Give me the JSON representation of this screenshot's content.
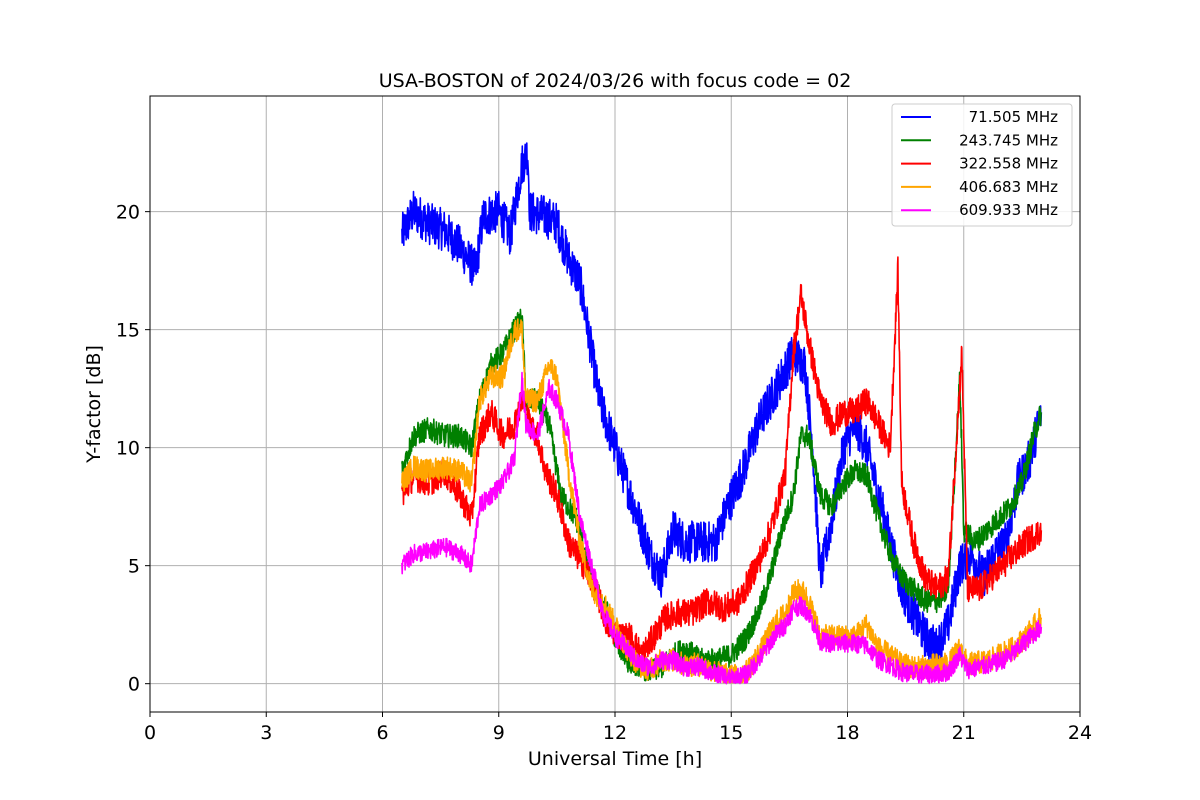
{
  "chart_data": {
    "type": "line",
    "title": "USA-BOSTON of 2024/03/26 with focus code = 02",
    "xlabel": "Universal Time [h]",
    "ylabel": "Y-factor [dB]",
    "xlim": [
      0,
      24
    ],
    "ylim": [
      -1.2,
      24.9
    ],
    "xticks": [
      "0",
      "3",
      "6",
      "9",
      "12",
      "15",
      "18",
      "21",
      "24"
    ],
    "yticks": [
      "0",
      "5",
      "10",
      "15",
      "20"
    ],
    "grid": true,
    "legend_position": "top-right",
    "series": [
      {
        "name": "71.505 MHz",
        "color": "#0000ff",
        "amp": 0.9,
        "points": [
          [
            6.5,
            19.0
          ],
          [
            6.8,
            20.0
          ],
          [
            7.2,
            19.5
          ],
          [
            7.6,
            19.2
          ],
          [
            8.0,
            18.5
          ],
          [
            8.4,
            17.5
          ],
          [
            8.6,
            19.8
          ],
          [
            9.0,
            20.0
          ],
          [
            9.3,
            19.0
          ],
          [
            9.6,
            22.0
          ],
          [
            9.75,
            22.5
          ],
          [
            9.8,
            20.0
          ],
          [
            10.2,
            19.8
          ],
          [
            10.5,
            19.5
          ],
          [
            10.8,
            18.0
          ],
          [
            11.1,
            17.0
          ],
          [
            11.3,
            15.0
          ],
          [
            11.6,
            12.0
          ],
          [
            12.0,
            10.0
          ],
          [
            12.3,
            8.5
          ],
          [
            12.6,
            7.0
          ],
          [
            12.9,
            5.5
          ],
          [
            13.2,
            4.5
          ],
          [
            13.5,
            6.5
          ],
          [
            13.8,
            6.0
          ],
          [
            14.2,
            6.0
          ],
          [
            14.6,
            6.0
          ],
          [
            14.9,
            7.5
          ],
          [
            15.3,
            9.0
          ],
          [
            15.7,
            11.0
          ],
          [
            16.0,
            12.0
          ],
          [
            16.3,
            13.0
          ],
          [
            16.6,
            14.0
          ],
          [
            16.9,
            13.5
          ],
          [
            17.1,
            10.0
          ],
          [
            17.3,
            4.5
          ],
          [
            17.6,
            7.0
          ],
          [
            17.9,
            10.0
          ],
          [
            18.2,
            11.0
          ],
          [
            18.5,
            10.0
          ],
          [
            18.8,
            8.0
          ],
          [
            19.1,
            6.0
          ],
          [
            19.4,
            4.0
          ],
          [
            19.7,
            3.0
          ],
          [
            20.0,
            2.0
          ],
          [
            20.3,
            1.5
          ],
          [
            20.6,
            2.5
          ],
          [
            20.9,
            5.0
          ],
          [
            21.2,
            5.5
          ],
          [
            21.5,
            4.5
          ],
          [
            21.8,
            5.5
          ],
          [
            22.1,
            6.0
          ],
          [
            22.4,
            8.5
          ],
          [
            22.7,
            9.5
          ],
          [
            23.0,
            11.5
          ]
        ]
      },
      {
        "name": "243.745 MHz",
        "color": "#008000",
        "amp": 0.5,
        "points": [
          [
            6.5,
            9.0
          ],
          [
            6.8,
            10.5
          ],
          [
            7.2,
            10.8
          ],
          [
            7.6,
            10.5
          ],
          [
            8.0,
            10.5
          ],
          [
            8.3,
            10.0
          ],
          [
            8.5,
            12.0
          ],
          [
            8.8,
            13.5
          ],
          [
            9.1,
            14.0
          ],
          [
            9.4,
            15.0
          ],
          [
            9.6,
            15.5
          ],
          [
            9.7,
            12.0
          ],
          [
            10.0,
            12.0
          ],
          [
            10.3,
            11.0
          ],
          [
            10.6,
            8.0
          ],
          [
            11.0,
            7.0
          ],
          [
            11.3,
            5.0
          ],
          [
            11.5,
            4.0
          ],
          [
            11.8,
            3.0
          ],
          [
            12.0,
            2.0
          ],
          [
            12.3,
            1.0
          ],
          [
            12.6,
            0.8
          ],
          [
            12.9,
            0.5
          ],
          [
            13.2,
            0.7
          ],
          [
            13.5,
            1.2
          ],
          [
            13.8,
            1.5
          ],
          [
            14.2,
            1.0
          ],
          [
            14.6,
            1.0
          ],
          [
            15.0,
            1.2
          ],
          [
            15.4,
            2.0
          ],
          [
            15.7,
            3.0
          ],
          [
            16.0,
            4.5
          ],
          [
            16.3,
            6.5
          ],
          [
            16.6,
            8.0
          ],
          [
            16.8,
            10.5
          ],
          [
            17.0,
            10.5
          ],
          [
            17.3,
            8.0
          ],
          [
            17.6,
            7.5
          ],
          [
            17.9,
            8.5
          ],
          [
            18.2,
            9.0
          ],
          [
            18.5,
            8.8
          ],
          [
            18.8,
            7.0
          ],
          [
            19.1,
            5.5
          ],
          [
            19.4,
            4.5
          ],
          [
            19.7,
            4.0
          ],
          [
            20.0,
            3.5
          ],
          [
            20.3,
            3.5
          ],
          [
            20.6,
            4.0
          ],
          [
            20.9,
            13.0
          ],
          [
            21.0,
            6.5
          ],
          [
            21.3,
            6.0
          ],
          [
            21.6,
            6.5
          ],
          [
            21.9,
            7.0
          ],
          [
            22.2,
            7.5
          ],
          [
            22.5,
            8.5
          ],
          [
            22.8,
            10.5
          ],
          [
            23.0,
            11.5
          ]
        ]
      },
      {
        "name": "322.558 MHz",
        "color": "#ff0000",
        "amp": 0.6,
        "points": [
          [
            6.5,
            8.0
          ],
          [
            6.8,
            8.8
          ],
          [
            7.2,
            8.5
          ],
          [
            7.6,
            9.0
          ],
          [
            8.0,
            8.0
          ],
          [
            8.3,
            7.0
          ],
          [
            8.5,
            10.5
          ],
          [
            8.8,
            11.5
          ],
          [
            9.1,
            10.5
          ],
          [
            9.4,
            11.0
          ],
          [
            9.6,
            12.0
          ],
          [
            9.8,
            11.0
          ],
          [
            10.0,
            10.5
          ],
          [
            10.2,
            9.0
          ],
          [
            10.5,
            8.0
          ],
          [
            10.8,
            6.0
          ],
          [
            11.2,
            5.0
          ],
          [
            11.5,
            4.0
          ],
          [
            11.8,
            2.5
          ],
          [
            12.1,
            2.0
          ],
          [
            12.4,
            2.0
          ],
          [
            12.7,
            1.2
          ],
          [
            13.0,
            2.0
          ],
          [
            13.3,
            2.8
          ],
          [
            13.6,
            3.0
          ],
          [
            14.0,
            3.0
          ],
          [
            14.4,
            3.5
          ],
          [
            14.8,
            3.2
          ],
          [
            15.2,
            3.5
          ],
          [
            15.5,
            4.5
          ],
          [
            15.8,
            5.5
          ],
          [
            16.1,
            7.0
          ],
          [
            16.4,
            9.0
          ],
          [
            16.6,
            14.0
          ],
          [
            16.8,
            16.5
          ],
          [
            17.0,
            14.5
          ],
          [
            17.3,
            12.0
          ],
          [
            17.6,
            11.0
          ],
          [
            17.9,
            11.5
          ],
          [
            18.2,
            11.5
          ],
          [
            18.5,
            12.0
          ],
          [
            18.8,
            11.0
          ],
          [
            19.1,
            10.0
          ],
          [
            19.3,
            17.5
          ],
          [
            19.4,
            8.5
          ],
          [
            19.7,
            6.0
          ],
          [
            20.0,
            4.5
          ],
          [
            20.3,
            4.0
          ],
          [
            20.6,
            4.5
          ],
          [
            20.8,
            10.0
          ],
          [
            20.95,
            14.0
          ],
          [
            21.1,
            4.0
          ],
          [
            21.4,
            4.0
          ],
          [
            21.7,
            4.5
          ],
          [
            22.0,
            5.0
          ],
          [
            22.3,
            5.5
          ],
          [
            22.6,
            6.0
          ],
          [
            23.0,
            6.5
          ]
        ]
      },
      {
        "name": "406.683 MHz",
        "color": "#ffa500",
        "amp": 0.5,
        "points": [
          [
            6.5,
            8.5
          ],
          [
            6.8,
            9.2
          ],
          [
            7.2,
            9.0
          ],
          [
            7.6,
            9.2
          ],
          [
            8.0,
            9.0
          ],
          [
            8.3,
            8.5
          ],
          [
            8.5,
            12.0
          ],
          [
            8.8,
            13.0
          ],
          [
            9.1,
            13.0
          ],
          [
            9.4,
            15.0
          ],
          [
            9.6,
            15.0
          ],
          [
            9.7,
            12.0
          ],
          [
            10.0,
            12.0
          ],
          [
            10.3,
            13.5
          ],
          [
            10.5,
            13.0
          ],
          [
            10.8,
            9.0
          ],
          [
            11.1,
            6.0
          ],
          [
            11.4,
            4.0
          ],
          [
            11.7,
            3.5
          ],
          [
            12.0,
            2.5
          ],
          [
            12.3,
            1.5
          ],
          [
            12.6,
            0.8
          ],
          [
            12.9,
            0.6
          ],
          [
            13.2,
            1.0
          ],
          [
            13.5,
            1.0
          ],
          [
            13.8,
            0.8
          ],
          [
            14.2,
            0.8
          ],
          [
            14.6,
            0.5
          ],
          [
            15.0,
            0.3
          ],
          [
            15.4,
            0.5
          ],
          [
            15.8,
            1.5
          ],
          [
            16.1,
            2.5
          ],
          [
            16.4,
            3.0
          ],
          [
            16.6,
            3.8
          ],
          [
            16.8,
            4.0
          ],
          [
            17.0,
            3.5
          ],
          [
            17.3,
            2.0
          ],
          [
            17.6,
            2.0
          ],
          [
            17.9,
            2.0
          ],
          [
            18.2,
            2.0
          ],
          [
            18.5,
            2.5
          ],
          [
            18.8,
            1.5
          ],
          [
            19.1,
            1.2
          ],
          [
            19.4,
            0.8
          ],
          [
            19.7,
            0.7
          ],
          [
            20.0,
            0.7
          ],
          [
            20.3,
            0.8
          ],
          [
            20.6,
            0.8
          ],
          [
            20.9,
            1.5
          ],
          [
            21.1,
            0.8
          ],
          [
            21.4,
            0.9
          ],
          [
            21.7,
            1.0
          ],
          [
            22.0,
            1.3
          ],
          [
            22.3,
            1.5
          ],
          [
            22.6,
            2.0
          ],
          [
            23.0,
            2.8
          ]
        ]
      },
      {
        "name": "609.933 MHz",
        "color": "#ff00ff",
        "amp": 0.4,
        "points": [
          [
            6.5,
            5.0
          ],
          [
            6.8,
            5.5
          ],
          [
            7.2,
            5.6
          ],
          [
            7.6,
            5.8
          ],
          [
            8.0,
            5.5
          ],
          [
            8.3,
            5.0
          ],
          [
            8.5,
            7.5
          ],
          [
            8.8,
            8.0
          ],
          [
            9.1,
            8.5
          ],
          [
            9.4,
            9.5
          ],
          [
            9.6,
            13.0
          ],
          [
            9.7,
            11.0
          ],
          [
            10.0,
            10.5
          ],
          [
            10.3,
            12.5
          ],
          [
            10.5,
            12.0
          ],
          [
            10.8,
            10.5
          ],
          [
            11.1,
            7.0
          ],
          [
            11.4,
            5.0
          ],
          [
            11.7,
            3.0
          ],
          [
            12.0,
            2.0
          ],
          [
            12.3,
            1.5
          ],
          [
            12.6,
            0.9
          ],
          [
            12.9,
            0.7
          ],
          [
            13.2,
            1.0
          ],
          [
            13.5,
            1.0
          ],
          [
            13.8,
            0.7
          ],
          [
            14.2,
            0.7
          ],
          [
            14.6,
            0.4
          ],
          [
            15.0,
            0.2
          ],
          [
            15.4,
            0.4
          ],
          [
            15.8,
            1.2
          ],
          [
            16.1,
            2.0
          ],
          [
            16.4,
            2.5
          ],
          [
            16.6,
            3.2
          ],
          [
            16.8,
            3.3
          ],
          [
            17.0,
            3.0
          ],
          [
            17.3,
            1.8
          ],
          [
            17.6,
            1.7
          ],
          [
            17.9,
            1.7
          ],
          [
            18.2,
            1.7
          ],
          [
            18.5,
            1.6
          ],
          [
            18.8,
            1.0
          ],
          [
            19.1,
            0.8
          ],
          [
            19.4,
            0.5
          ],
          [
            19.7,
            0.4
          ],
          [
            20.0,
            0.4
          ],
          [
            20.3,
            0.4
          ],
          [
            20.6,
            0.5
          ],
          [
            20.9,
            1.2
          ],
          [
            21.1,
            0.6
          ],
          [
            21.4,
            0.7
          ],
          [
            21.7,
            0.8
          ],
          [
            22.0,
            1.0
          ],
          [
            22.3,
            1.3
          ],
          [
            22.6,
            1.8
          ],
          [
            23.0,
            2.4
          ]
        ]
      }
    ]
  }
}
